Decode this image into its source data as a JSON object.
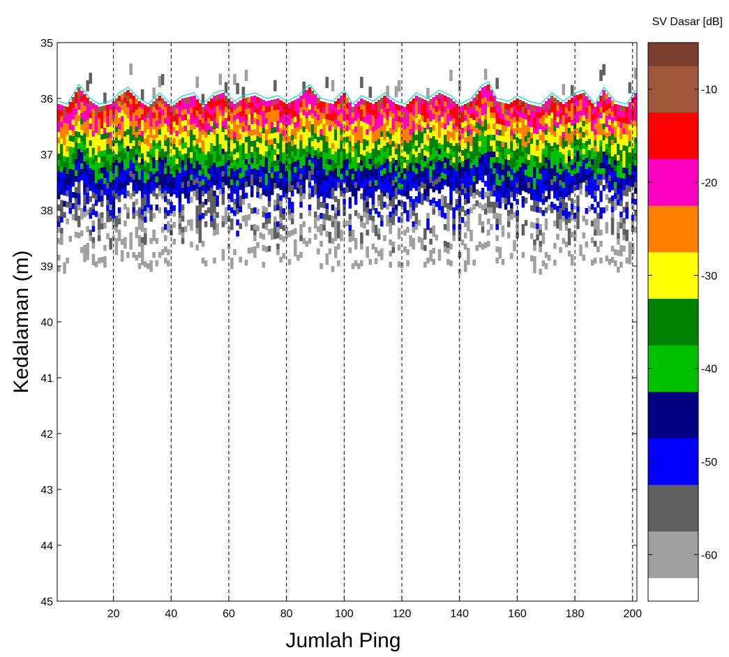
{
  "chart_data": {
    "type": "heatmap",
    "title": "",
    "xlabel": "Jumlah Ping",
    "ylabel": "Kedalaman (m)",
    "xlim": [
      0.5,
      201.5
    ],
    "ylim": [
      35,
      45
    ],
    "y_reversed": true,
    "x_ticks": [
      20,
      40,
      60,
      80,
      100,
      120,
      140,
      160,
      180,
      200
    ],
    "y_ticks": [
      35,
      36,
      37,
      38,
      39,
      40,
      41,
      42,
      43,
      44,
      45
    ],
    "grid": "dashed vertical lines at x ticks",
    "n_pings": 201,
    "depth_bin_m": 0.1,
    "colorbar": {
      "label": "SV Dasar [dB]",
      "range": [
        -65,
        -5
      ],
      "ticks": [
        -10,
        -20,
        -30,
        -40,
        -50,
        -60
      ],
      "levels": [
        {
          "from": -65,
          "to": -62.5,
          "color": "#ffffff"
        },
        {
          "from": -62.5,
          "to": -57.5,
          "color": "#a0a0a0"
        },
        {
          "from": -57.5,
          "to": -52.5,
          "color": "#606060"
        },
        {
          "from": -52.5,
          "to": -47.5,
          "color": "#0000ff"
        },
        {
          "from": -47.5,
          "to": -42.5,
          "color": "#000080"
        },
        {
          "from": -42.5,
          "to": -37.5,
          "color": "#00c000"
        },
        {
          "from": -37.5,
          "to": -32.5,
          "color": "#008000"
        },
        {
          "from": -32.5,
          "to": -27.5,
          "color": "#ffff00"
        },
        {
          "from": -27.5,
          "to": -22.5,
          "color": "#ff8000"
        },
        {
          "from": -22.5,
          "to": -17.5,
          "color": "#ff00c0"
        },
        {
          "from": -17.5,
          "to": -12.5,
          "color": "#ff0000"
        },
        {
          "from": -12.5,
          "to": -7.5,
          "color": "#a0583a"
        },
        {
          "from": -7.5,
          "to": -5,
          "color": "#7a3e2c"
        }
      ]
    },
    "bottom_line": {
      "color": "#00e0e0",
      "label": "",
      "points": [
        [
          1,
          36.05
        ],
        [
          4,
          36.1
        ],
        [
          8,
          35.75
        ],
        [
          12,
          36.0
        ],
        [
          15,
          36.1
        ],
        [
          19,
          36.05
        ],
        [
          22,
          35.9
        ],
        [
          25,
          35.8
        ],
        [
          29,
          36.0
        ],
        [
          32,
          36.1
        ],
        [
          36,
          35.9
        ],
        [
          40,
          36.1
        ],
        [
          44,
          35.95
        ],
        [
          48,
          35.9
        ],
        [
          51,
          36.1
        ],
        [
          55,
          35.9
        ],
        [
          58,
          35.85
        ],
        [
          62,
          36.05
        ],
        [
          65,
          35.95
        ],
        [
          69,
          35.9
        ],
        [
          73,
          36.0
        ],
        [
          77,
          35.95
        ],
        [
          80,
          36.05
        ],
        [
          84,
          35.95
        ],
        [
          88,
          35.75
        ],
        [
          92,
          36.0
        ],
        [
          96,
          36.05
        ],
        [
          100,
          35.85
        ],
        [
          103,
          36.1
        ],
        [
          106,
          35.95
        ],
        [
          110,
          36.05
        ],
        [
          114,
          35.9
        ],
        [
          118,
          36.05
        ],
        [
          121,
          36.1
        ],
        [
          125,
          35.9
        ],
        [
          129,
          36.0
        ],
        [
          133,
          35.85
        ],
        [
          137,
          35.95
        ],
        [
          140,
          36.1
        ],
        [
          144,
          36.0
        ],
        [
          148,
          35.75
        ],
        [
          150,
          35.7
        ],
        [
          153,
          36.0
        ],
        [
          157,
          36.05
        ],
        [
          160,
          35.95
        ],
        [
          164,
          36.05
        ],
        [
          168,
          36.1
        ],
        [
          172,
          35.9
        ],
        [
          176,
          36.05
        ],
        [
          180,
          35.9
        ],
        [
          183,
          35.85
        ],
        [
          187,
          36.1
        ],
        [
          190,
          35.8
        ],
        [
          194,
          36.05
        ],
        [
          198,
          36.1
        ],
        [
          201,
          35.85
        ]
      ]
    }
  }
}
